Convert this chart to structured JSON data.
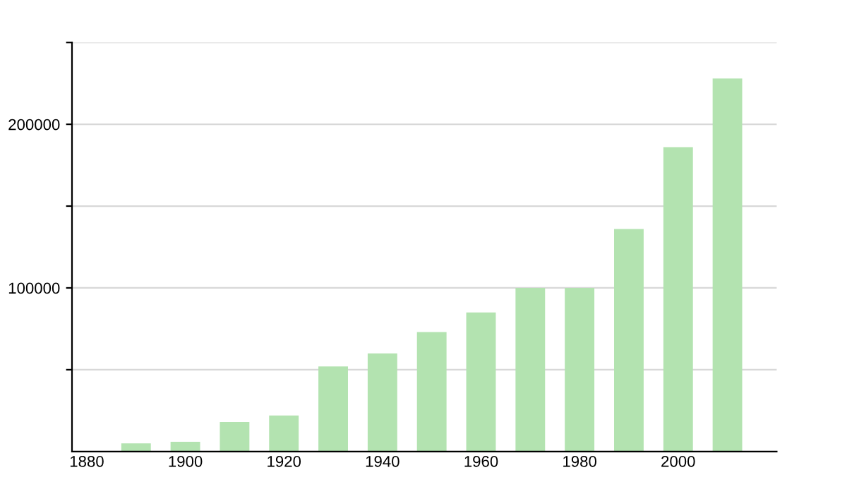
{
  "chart_data": {
    "type": "bar",
    "x": [
      1890,
      1900,
      1910,
      1920,
      1930,
      1940,
      1950,
      1960,
      1970,
      1980,
      1990,
      2000,
      2010
    ],
    "values": [
      5000,
      6000,
      18000,
      22000,
      52000,
      60000,
      73000,
      85000,
      100000,
      100000,
      136000,
      186000,
      228000
    ],
    "color": "#b3e3b0",
    "xlim": [
      1877,
      2020
    ],
    "xticks": [
      1880,
      1900,
      1920,
      1940,
      1960,
      1980,
      2000
    ],
    "ylim": [
      0,
      250000
    ],
    "yticks": [
      {
        "value": 50000,
        "label": null
      },
      100000,
      {
        "value": 150000,
        "label": null
      },
      200000,
      {
        "value": 250000,
        "label": null
      }
    ],
    "grid": "y",
    "legend": false
  }
}
